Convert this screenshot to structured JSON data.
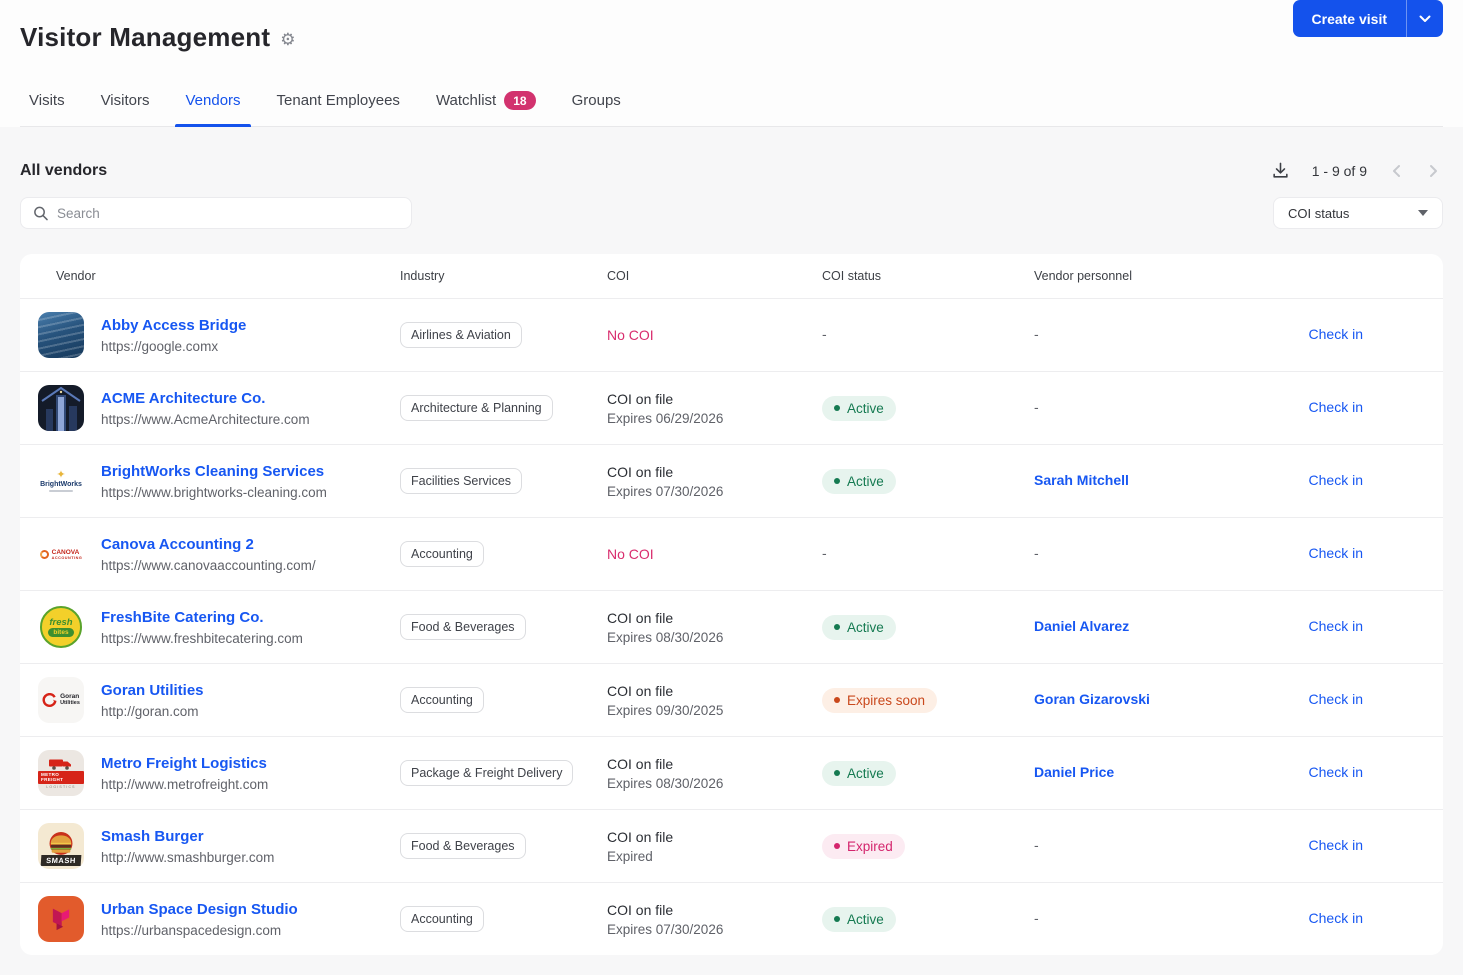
{
  "header": {
    "title": "Visitor Management",
    "create_visit_label": "Create visit"
  },
  "tabs": [
    {
      "label": "Visits",
      "active": false
    },
    {
      "label": "Visitors",
      "active": false
    },
    {
      "label": "Vendors",
      "active": true
    },
    {
      "label": "Tenant Employees",
      "active": false
    },
    {
      "label": "Watchlist",
      "active": false,
      "badge": "18"
    },
    {
      "label": "Groups",
      "active": false
    }
  ],
  "toolbar": {
    "section_title": "All vendors",
    "pagination": "1 - 9 of 9",
    "search_placeholder": "Search",
    "coi_filter_label": "COI status"
  },
  "table": {
    "columns": [
      "Vendor",
      "Industry",
      "COI",
      "COI status",
      "Vendor personnel"
    ],
    "check_in_label": "Check in",
    "empty_value": "-"
  },
  "statuses": {
    "active": {
      "label": "Active",
      "bg": "#e7f4ee",
      "fg": "#157a51",
      "dot": "#157a51"
    },
    "expires_soon": {
      "label": "Expires soon",
      "bg": "#fdefe5",
      "fg": "#c9481c",
      "dot": "#c9481c"
    },
    "expired": {
      "label": "Expired",
      "bg": "#fcebf2",
      "fg": "#d4256d",
      "dot": "#d4256d"
    }
  },
  "colors": {
    "accent_blue": "#1452ec",
    "link_blue": "#1757f2",
    "danger_pink": "#d92d6e",
    "watchlist_badge": "#d2326e"
  },
  "vendors": [
    {
      "name": "Abby Access Bridge",
      "url": "https://google.comx",
      "industry": "Airlines & Aviation",
      "coi": {
        "line1": "No COI",
        "line2": null,
        "missing": true
      },
      "status": null,
      "personnel": null,
      "logo": {
        "kind": "ocean-photo",
        "text": null
      }
    },
    {
      "name": "ACME Architecture Co.",
      "url": "https://www.AcmeArchitecture.com",
      "industry": "Architecture & Planning",
      "coi": {
        "line1": "COI on file",
        "line2": "Expires 06/29/2026",
        "missing": false
      },
      "status": "active",
      "personnel": null,
      "logo": {
        "kind": "skyline-photo",
        "text": null
      }
    },
    {
      "name": "BrightWorks Cleaning Services",
      "url": "https://www.brightworks-cleaning.com",
      "industry": "Facilities Services",
      "coi": {
        "line1": "COI on file",
        "line2": "Expires 07/30/2026",
        "missing": false
      },
      "status": "active",
      "personnel": "Sarah Mitchell",
      "logo": {
        "kind": "brightworks-wordmark",
        "text": "BrightWorks"
      }
    },
    {
      "name": "Canova Accounting 2",
      "url": "https://www.canovaaccounting.com/",
      "industry": "Accounting",
      "coi": {
        "line1": "No COI",
        "line2": null,
        "missing": true
      },
      "status": null,
      "personnel": null,
      "logo": {
        "kind": "canova-wordmark",
        "text": "CANOVA ACCOUNTING"
      }
    },
    {
      "name": "FreshBite Catering Co.",
      "url": "https://www.freshbitecatering.com",
      "industry": "Food & Beverages",
      "coi": {
        "line1": "COI on file",
        "line2": "Expires 08/30/2026",
        "missing": false
      },
      "status": "active",
      "personnel": "Daniel Alvarez",
      "logo": {
        "kind": "freshbite-roundel",
        "text": "fresh bites"
      }
    },
    {
      "name": "Goran Utilities",
      "url": "http://goran.com",
      "industry": "Accounting",
      "coi": {
        "line1": "COI on file",
        "line2": "Expires 09/30/2025",
        "missing": false
      },
      "status": "expires_soon",
      "personnel": "Goran Gizarovski",
      "logo": {
        "kind": "goran-wordmark",
        "text": "Goran Utilities"
      }
    },
    {
      "name": "Metro Freight Logistics",
      "url": "http://www.metrofreight.com",
      "industry": "Package & Freight Delivery",
      "coi": {
        "line1": "COI on file",
        "line2": "Expires 08/30/2026",
        "missing": false
      },
      "status": "active",
      "personnel": "Daniel Price",
      "logo": {
        "kind": "metro-freight-badge",
        "text": "METRO FREIGHT LOGISTICS"
      }
    },
    {
      "name": "Smash Burger",
      "url": "http://www.smashburger.com",
      "industry": "Food & Beverages",
      "coi": {
        "line1": "COI on file",
        "line2": "Expired",
        "missing": false
      },
      "status": "expired",
      "personnel": null,
      "logo": {
        "kind": "smash-burger-badge",
        "text": "SMASH"
      }
    },
    {
      "name": "Urban Space Design Studio",
      "url": "https://urbanspacedesign.com",
      "industry": "Accounting",
      "coi": {
        "line1": "COI on file",
        "line2": "Expires 07/30/2026",
        "missing": false
      },
      "status": "active",
      "personnel": null,
      "logo": {
        "kind": "urban-geometric",
        "text": null
      }
    }
  ]
}
